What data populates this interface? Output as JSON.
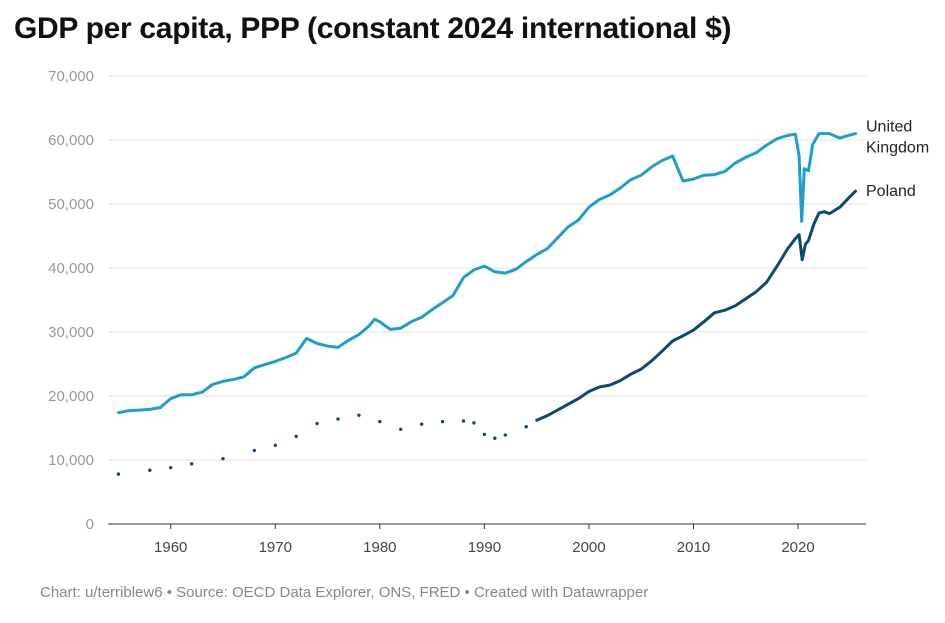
{
  "chart_data": {
    "type": "line",
    "title": "GDP per capita, PPP (constant 2024 international $)",
    "footer": "Chart: u/terriblew6 • Source: OECD Data Explorer, ONS, FRED • Created with Datawrapper",
    "xlim": [
      1954,
      2026.5
    ],
    "ylim": [
      0,
      70000
    ],
    "x_ticks": [
      1960,
      1970,
      1980,
      1990,
      2000,
      2010,
      2020
    ],
    "x_tick_labels": [
      "1960",
      "1970",
      "1980",
      "1990",
      "2000",
      "2010",
      "2020"
    ],
    "y_ticks": [
      0,
      10000,
      20000,
      30000,
      40000,
      50000,
      60000,
      70000
    ],
    "y_tick_labels": [
      "0",
      "10,000",
      "20,000",
      "30,000",
      "40,000",
      "50,000",
      "60,000",
      "70,000"
    ],
    "grid": true,
    "legend": "direct labels at line ends",
    "series": [
      {
        "name": "United Kingdom",
        "label_lines": [
          "United",
          "Kingdom"
        ],
        "color": "#1f9ec9",
        "style": "solid",
        "points": [
          [
            1955,
            17400
          ],
          [
            1956,
            17700
          ],
          [
            1957,
            17800
          ],
          [
            1958,
            17900
          ],
          [
            1959,
            18200
          ],
          [
            1960,
            19600
          ],
          [
            1961,
            20200
          ],
          [
            1962,
            20200
          ],
          [
            1963,
            20600
          ],
          [
            1964,
            21800
          ],
          [
            1965,
            22300
          ],
          [
            1966,
            22600
          ],
          [
            1967,
            23000
          ],
          [
            1968,
            24400
          ],
          [
            1969,
            24900
          ],
          [
            1970,
            25400
          ],
          [
            1971,
            26000
          ],
          [
            1972,
            26700
          ],
          [
            1973,
            29000
          ],
          [
            1974,
            28200
          ],
          [
            1975,
            27800
          ],
          [
            1976,
            27600
          ],
          [
            1977,
            28700
          ],
          [
            1978,
            29600
          ],
          [
            1979,
            31000
          ],
          [
            1979.5,
            32000
          ],
          [
            1980,
            31600
          ],
          [
            1981,
            30400
          ],
          [
            1982,
            30600
          ],
          [
            1983,
            31600
          ],
          [
            1984,
            32300
          ],
          [
            1985,
            33500
          ],
          [
            1986,
            34600
          ],
          [
            1987,
            35700
          ],
          [
            1988,
            38500
          ],
          [
            1989,
            39700
          ],
          [
            1990,
            40300
          ],
          [
            1991,
            39400
          ],
          [
            1992,
            39200
          ],
          [
            1993,
            39800
          ],
          [
            1994,
            41000
          ],
          [
            1995,
            42100
          ],
          [
            1996,
            43000
          ],
          [
            1997,
            44700
          ],
          [
            1998,
            46400
          ],
          [
            1999,
            47500
          ],
          [
            2000,
            49500
          ],
          [
            2001,
            50700
          ],
          [
            2002,
            51400
          ],
          [
            2003,
            52500
          ],
          [
            2004,
            53800
          ],
          [
            2005,
            54500
          ],
          [
            2006,
            55800
          ],
          [
            2007,
            56800
          ],
          [
            2008,
            57500
          ],
          [
            2009,
            53600
          ],
          [
            2010,
            53900
          ],
          [
            2011,
            54500
          ],
          [
            2012,
            54600
          ],
          [
            2013,
            55100
          ],
          [
            2014,
            56400
          ],
          [
            2015,
            57300
          ],
          [
            2016,
            58000
          ],
          [
            2017,
            59200
          ],
          [
            2018,
            60200
          ],
          [
            2019,
            60700
          ],
          [
            2019.75,
            60900
          ],
          [
            2020.1,
            57500
          ],
          [
            2020.35,
            47300
          ],
          [
            2020.6,
            55500
          ],
          [
            2021,
            55200
          ],
          [
            2021.4,
            59300
          ],
          [
            2022,
            61000
          ],
          [
            2023,
            61000
          ],
          [
            2024,
            60300
          ],
          [
            2025,
            60800
          ],
          [
            2025.5,
            61000
          ]
        ]
      },
      {
        "name": "Poland (estimate, dotted)",
        "color": "#0d4a6e",
        "style": "dotted",
        "points": [
          [
            1955,
            7800
          ],
          [
            1958,
            8400
          ],
          [
            1960,
            8800
          ],
          [
            1962,
            9400
          ],
          [
            1965,
            10200
          ],
          [
            1968,
            11500
          ],
          [
            1970,
            12300
          ],
          [
            1972,
            13700
          ],
          [
            1974,
            15700
          ],
          [
            1976,
            16400
          ],
          [
            1978,
            17000
          ],
          [
            1980,
            16000
          ],
          [
            1982,
            14800
          ],
          [
            1984,
            15600
          ],
          [
            1986,
            16000
          ],
          [
            1988,
            16100
          ],
          [
            1989,
            15800
          ],
          [
            1990,
            14000
          ],
          [
            1991,
            13400
          ],
          [
            1992,
            13900
          ],
          [
            1994,
            15200
          ]
        ]
      },
      {
        "name": "Poland",
        "label_lines": [
          "Poland"
        ],
        "color": "#0d4a6e",
        "style": "solid",
        "points": [
          [
            1995,
            16200
          ],
          [
            1996,
            16900
          ],
          [
            1997,
            17800
          ],
          [
            1998,
            18700
          ],
          [
            1999,
            19600
          ],
          [
            2000,
            20700
          ],
          [
            2001,
            21400
          ],
          [
            2002,
            21700
          ],
          [
            2003,
            22400
          ],
          [
            2004,
            23400
          ],
          [
            2005,
            24200
          ],
          [
            2006,
            25500
          ],
          [
            2007,
            27000
          ],
          [
            2008,
            28600
          ],
          [
            2009,
            29400
          ],
          [
            2010,
            30300
          ],
          [
            2011,
            31600
          ],
          [
            2012,
            33000
          ],
          [
            2013,
            33400
          ],
          [
            2014,
            34100
          ],
          [
            2015,
            35200
          ],
          [
            2016,
            36300
          ],
          [
            2017,
            37800
          ],
          [
            2018,
            40300
          ],
          [
            2019,
            43000
          ],
          [
            2019.75,
            44600
          ],
          [
            2020.1,
            45200
          ],
          [
            2020.4,
            41300
          ],
          [
            2020.7,
            43700
          ],
          [
            2021,
            44300
          ],
          [
            2021.5,
            46800
          ],
          [
            2022,
            48600
          ],
          [
            2022.5,
            48800
          ],
          [
            2023,
            48500
          ],
          [
            2024,
            49500
          ],
          [
            2025,
            51200
          ],
          [
            2025.5,
            52000
          ]
        ]
      }
    ]
  }
}
